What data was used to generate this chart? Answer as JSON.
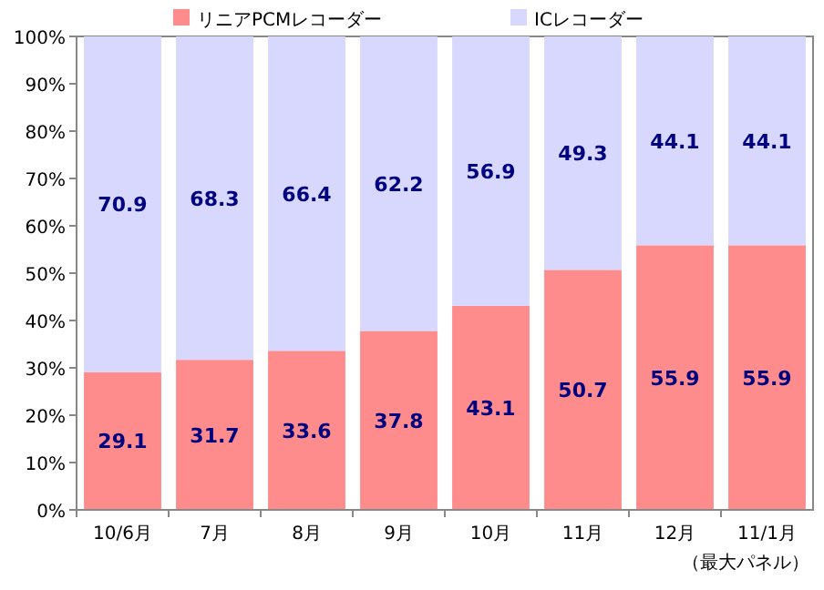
{
  "chart_data": {
    "type": "bar",
    "stacked": true,
    "categories": [
      "10/6月",
      "7月",
      "8月",
      "9月",
      "10月",
      "11月",
      "12月",
      "11/1月"
    ],
    "series": [
      {
        "name": "リニアPCMレコーダー",
        "color": "#ff8c8c",
        "values": [
          29.1,
          31.7,
          33.6,
          37.8,
          43.1,
          50.7,
          55.9,
          55.9
        ]
      },
      {
        "name": "ICレコーダー",
        "color": "#d8d8ff",
        "values": [
          70.9,
          68.3,
          66.4,
          62.2,
          56.9,
          49.3,
          44.1,
          44.1
        ]
      }
    ],
    "ylim": [
      0,
      100
    ],
    "yticks": [
      {
        "value": 0,
        "label": "0%"
      },
      {
        "value": 10,
        "label": "10%"
      },
      {
        "value": 20,
        "label": "20%"
      },
      {
        "value": 30,
        "label": "30%"
      },
      {
        "value": 40,
        "label": "40%"
      },
      {
        "value": 50,
        "label": "50%"
      },
      {
        "value": 60,
        "label": "60%"
      },
      {
        "value": 70,
        "label": "70%"
      },
      {
        "value": 80,
        "label": "80%"
      },
      {
        "value": 90,
        "label": "90%"
      },
      {
        "value": 100,
        "label": "100%"
      }
    ],
    "data_labels": true,
    "legend": "top",
    "grid": false,
    "annotations": [
      "（最大パネル）"
    ]
  }
}
